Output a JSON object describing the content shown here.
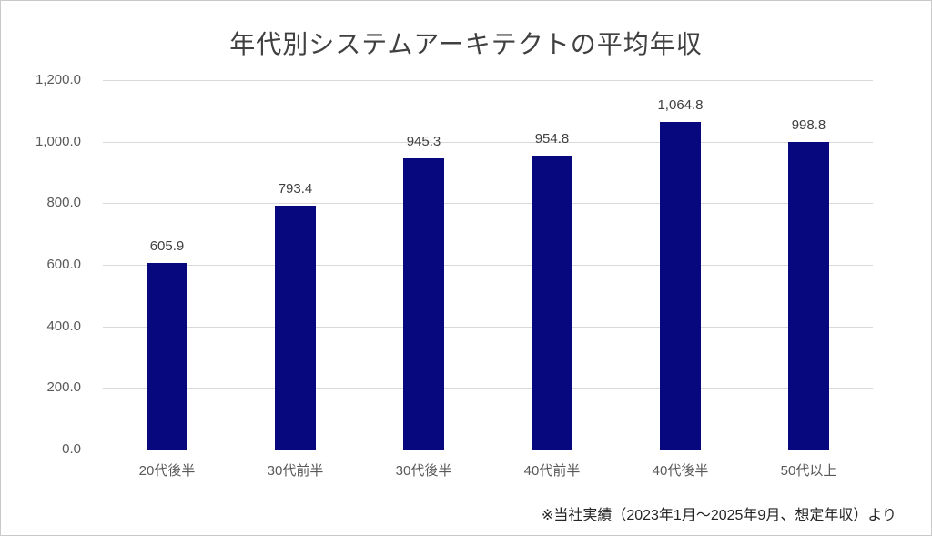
{
  "chart": {
    "title": "年代別システムアーキテクトの平均年収",
    "source_note": "※当社実績（2023年1月～2025年9月、想定年収）より"
  },
  "chart_data": {
    "type": "bar",
    "title": "年代別システムアーキテクトの平均年収",
    "categories": [
      "20代後半",
      "30代前半",
      "30代後半",
      "40代前半",
      "40代後半",
      "50代以上"
    ],
    "values": [
      605.9,
      793.4,
      945.3,
      954.8,
      1064.8,
      998.8
    ],
    "value_labels": [
      "605.9",
      "793.4",
      "945.3",
      "954.8",
      "1,064.8",
      "998.8"
    ],
    "xlabel": "",
    "ylabel": "",
    "ylim": [
      0,
      1200
    ],
    "yticks": [
      {
        "value": 0,
        "label": "0.0"
      },
      {
        "value": 200,
        "label": "200.0"
      },
      {
        "value": 400,
        "label": "400.0"
      },
      {
        "value": 600,
        "label": "600.0"
      },
      {
        "value": 800,
        "label": "800.0"
      },
      {
        "value": 1000,
        "label": "1,000.0"
      },
      {
        "value": 1200,
        "label": "1,200.0"
      }
    ],
    "grid": true,
    "legend": "none",
    "bar_color": "#08087e",
    "source_note": "※当社実績（2023年1月～2025年9月、想定年収）より"
  }
}
